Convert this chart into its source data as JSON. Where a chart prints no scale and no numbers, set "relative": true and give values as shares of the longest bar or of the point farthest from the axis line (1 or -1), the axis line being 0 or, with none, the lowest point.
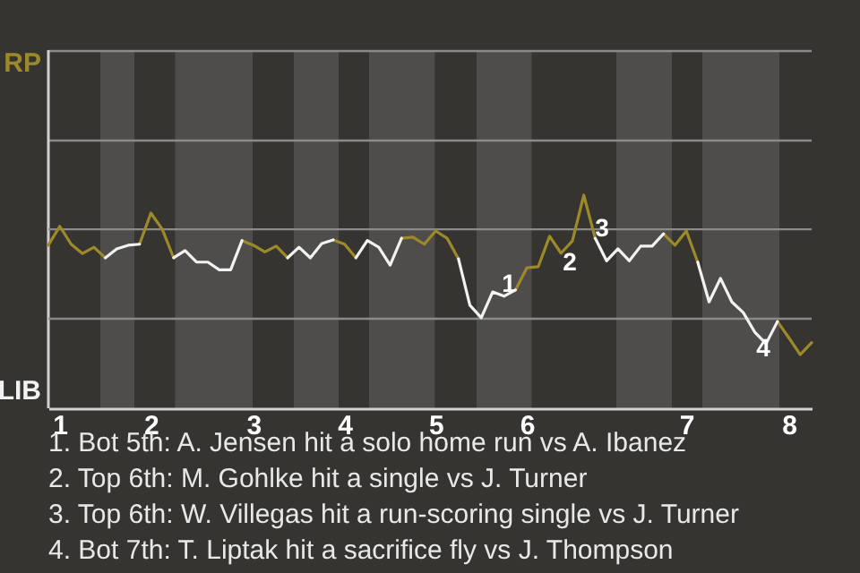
{
  "chart_data": {
    "type": "line",
    "categories": [
      null,
      "1",
      null,
      null,
      null,
      null,
      null,
      null,
      null,
      "2",
      null,
      null,
      null,
      null,
      null,
      null,
      null,
      null,
      "3",
      null,
      null,
      null,
      null,
      null,
      null,
      null,
      "4",
      null,
      null,
      null,
      null,
      null,
      null,
      null,
      "5",
      null,
      null,
      null,
      null,
      null,
      null,
      null,
      "6",
      null,
      null,
      null,
      null,
      null,
      null,
      null,
      null,
      null,
      null,
      null,
      null,
      null,
      "7",
      null,
      null,
      null,
      null,
      null,
      null,
      null,
      null,
      "8",
      null,
      null
    ],
    "relative": true,
    "series": [
      {
        "name": "RP",
        "color": "#9c8a2a",
        "values": [
          0.765,
          0.854,
          0.77,
          0.726,
          0.756,
          0.706,
          null,
          null,
          0.77,
          0.916,
          0.84,
          0.706,
          null,
          null,
          null,
          null,
          null,
          0.787,
          0.765,
          0.734,
          0.761,
          0.706,
          null,
          null,
          null,
          0.79,
          0.77,
          0.706,
          null,
          null,
          null,
          0.798,
          0.803,
          0.77,
          0.832,
          0.798,
          0.701,
          null,
          null,
          null,
          null,
          0.555,
          0.659,
          0.664,
          0.807,
          0.728,
          0.785,
          1,
          0.798,
          null,
          null,
          null,
          null,
          null,
          0.819,
          0.765,
          0.832,
          0.686,
          null,
          null,
          null,
          null,
          null,
          null,
          0.407,
          0.331,
          0.252,
          0.308
        ]
      },
      {
        "name": "LIB",
        "color": "#f2f2f2",
        "values": [
          null,
          null,
          null,
          null,
          null,
          0.706,
          0.748,
          0.765,
          0.77,
          null,
          null,
          0.706,
          0.74,
          0.686,
          0.686,
          0.65,
          0.65,
          0.787,
          null,
          null,
          null,
          0.706,
          0.756,
          0.706,
          0.773,
          0.79,
          null,
          0.706,
          0.787,
          0.756,
          0.672,
          0.798,
          null,
          null,
          null,
          null,
          0.701,
          0.484,
          0.425,
          0.546,
          0.526,
          0.555,
          null,
          null,
          null,
          null,
          null,
          null,
          0.798,
          0.692,
          0.748,
          0.692,
          0.761,
          0.761,
          0.819,
          null,
          null,
          0.686,
          0.499,
          0.61,
          0.499,
          0.449,
          0.358,
          0.303,
          0.407,
          null,
          null,
          null
        ]
      }
    ],
    "ref_lines": [
      {
        "axis": "y",
        "value": 0.84,
        "color": "#8a8a8a"
      },
      {
        "axis": "y",
        "value": 0.42,
        "color": "#8a8a8a"
      }
    ],
    "annotations": [
      "1",
      "2",
      "3",
      "4",
      "1. Bot 5th: A. Jensen hit a solo home run vs A. Ibanez",
      "2. Top 6th: M. Gohlke hit a single vs J. Turner",
      "3. Top 6th: W. Villegas hit a run-scoring single vs J. Turner",
      "4. Bot 7th: T. Liptak hit a sacrifice fly vs J. Thompson"
    ]
  }
}
